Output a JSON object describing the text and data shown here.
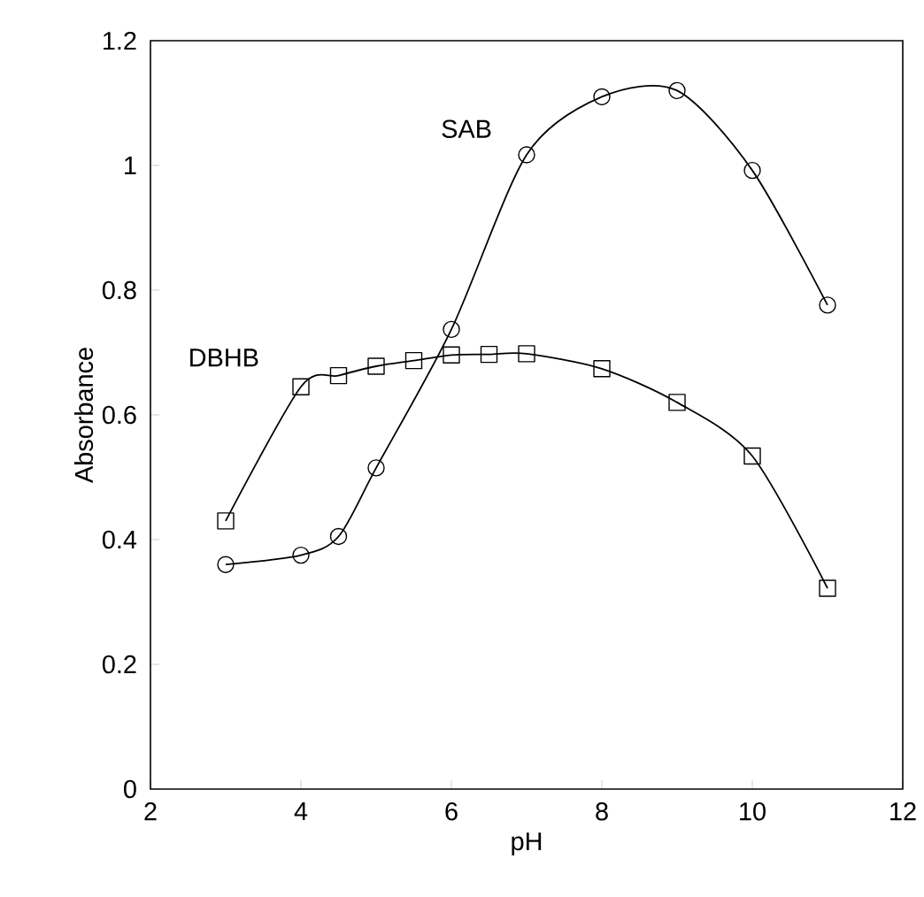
{
  "chart_data": {
    "type": "line",
    "xlabel": "pH",
    "ylabel": "Absorbance",
    "xlim": [
      2,
      12
    ],
    "xticks": [
      2,
      4,
      6,
      8,
      10,
      12
    ],
    "ylim": [
      0,
      1.2
    ],
    "yticks": [
      0,
      {
        "value": 0.2,
        "label": "0.2"
      },
      {
        "value": 0.4,
        "label": "0.4"
      },
      {
        "value": 0.6,
        "label": "0.6"
      },
      {
        "value": 0.8,
        "label": "0.8"
      },
      1,
      {
        "value": 1.2,
        "label": "1.2"
      }
    ],
    "line_style": "solid",
    "series": [
      {
        "name": "SAB",
        "color": "#000000",
        "marker": "circle",
        "x": [
          3,
          4,
          4.5,
          5,
          6,
          7,
          8,
          9,
          10,
          11
        ],
        "values": [
          0.36,
          0.375,
          0.405,
          0.515,
          0.737,
          1.017,
          1.11,
          1.12,
          0.992,
          0.776
        ]
      },
      {
        "name": "DBHB",
        "color": "#000000",
        "marker": "square",
        "x": [
          3,
          4,
          4.5,
          5,
          5.5,
          6,
          6.5,
          7,
          8,
          9,
          10,
          11
        ],
        "values": [
          0.43,
          0.645,
          0.663,
          0.678,
          0.687,
          0.696,
          0.697,
          0.698,
          0.674,
          0.62,
          0.534,
          0.322
        ]
      }
    ]
  }
}
